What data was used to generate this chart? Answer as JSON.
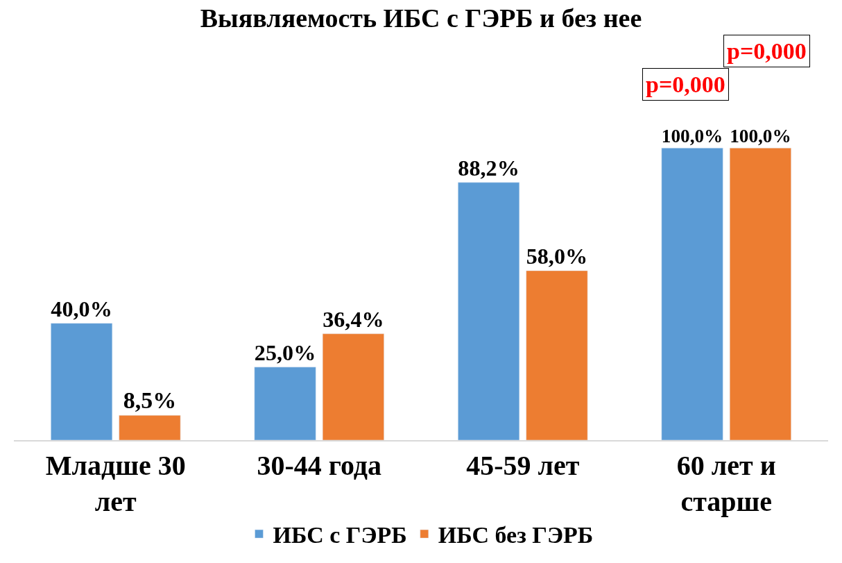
{
  "chart_data": {
    "type": "bar",
    "title": "Выявляемость ИБС с ГЭРБ и без нее",
    "categories": [
      "Младше 30 лет",
      "30-44 года",
      "45-59 лет",
      "60 лет и старше"
    ],
    "series": [
      {
        "name": "ИБС с ГЭРБ",
        "color": "#5b9bd5",
        "values": [
          40.0,
          25.0,
          88.2,
          100.0
        ],
        "value_labels": [
          "40,0%",
          "25,0%",
          "88,2%",
          "100,0%"
        ]
      },
      {
        "name": "ИБС без ГЭРБ",
        "color": "#ed7d31",
        "values": [
          8.5,
          36.4,
          58.0,
          100.0
        ],
        "value_labels": [
          "8,5%",
          "36,4%",
          "58,0%",
          "100,0%"
        ]
      }
    ],
    "annotations": [
      "p=0,000",
      "p=0,000"
    ],
    "legend": "bottom",
    "tick_labels": "x"
  }
}
